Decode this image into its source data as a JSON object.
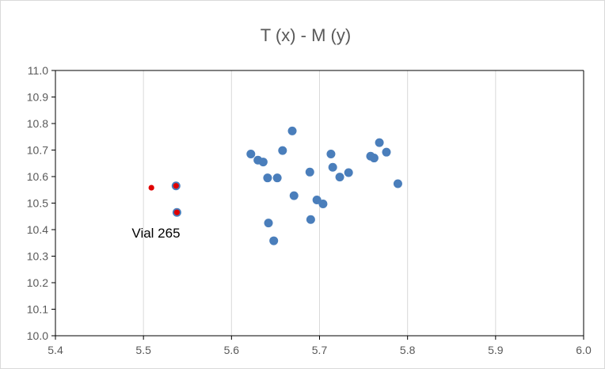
{
  "chart_data": {
    "type": "scatter",
    "title": "T (x)  - M (y)",
    "xlabel": "",
    "ylabel": "",
    "xlim": [
      5.4,
      6.0
    ],
    "ylim": [
      10.0,
      11.0
    ],
    "x_ticks": [
      "5.4",
      "5.5",
      "5.6",
      "5.7",
      "5.8",
      "5.9",
      "6.0"
    ],
    "y_ticks": [
      "10.0",
      "10.1",
      "10.2",
      "10.3",
      "10.4",
      "10.5",
      "10.6",
      "10.7",
      "10.8",
      "10.9",
      "11.0"
    ],
    "grid": "vertical",
    "legend": "none",
    "colors": {
      "series": "#4a7ebb",
      "highlight": "#e00000",
      "axis": "#000000",
      "grid": "#d9d9d9"
    },
    "series": [
      {
        "points": [
          {
            "x": 5.537,
            "y": 10.565
          },
          {
            "x": 5.538,
            "y": 10.465
          },
          {
            "x": 5.622,
            "y": 10.685
          },
          {
            "x": 5.63,
            "y": 10.662
          },
          {
            "x": 5.636,
            "y": 10.655
          },
          {
            "x": 5.641,
            "y": 10.595
          },
          {
            "x": 5.642,
            "y": 10.425
          },
          {
            "x": 5.648,
            "y": 10.358
          },
          {
            "x": 5.652,
            "y": 10.595
          },
          {
            "x": 5.658,
            "y": 10.698
          },
          {
            "x": 5.669,
            "y": 10.772
          },
          {
            "x": 5.671,
            "y": 10.528
          },
          {
            "x": 5.689,
            "y": 10.617
          },
          {
            "x": 5.69,
            "y": 10.438
          },
          {
            "x": 5.697,
            "y": 10.512
          },
          {
            "x": 5.704,
            "y": 10.497
          },
          {
            "x": 5.713,
            "y": 10.685
          },
          {
            "x": 5.715,
            "y": 10.635
          },
          {
            "x": 5.723,
            "y": 10.598
          },
          {
            "x": 5.733,
            "y": 10.615
          },
          {
            "x": 5.758,
            "y": 10.677
          },
          {
            "x": 5.762,
            "y": 10.67
          },
          {
            "x": 5.768,
            "y": 10.728
          },
          {
            "x": 5.776,
            "y": 10.692
          },
          {
            "x": 5.789,
            "y": 10.573
          }
        ]
      },
      {
        "points": [
          {
            "x": 5.509,
            "y": 10.558
          },
          {
            "x": 5.537,
            "y": 10.565
          },
          {
            "x": 5.538,
            "y": 10.465
          }
        ]
      }
    ],
    "annotations": [
      {
        "text": "Vial 265",
        "x": 5.538,
        "y": 10.465
      }
    ]
  }
}
